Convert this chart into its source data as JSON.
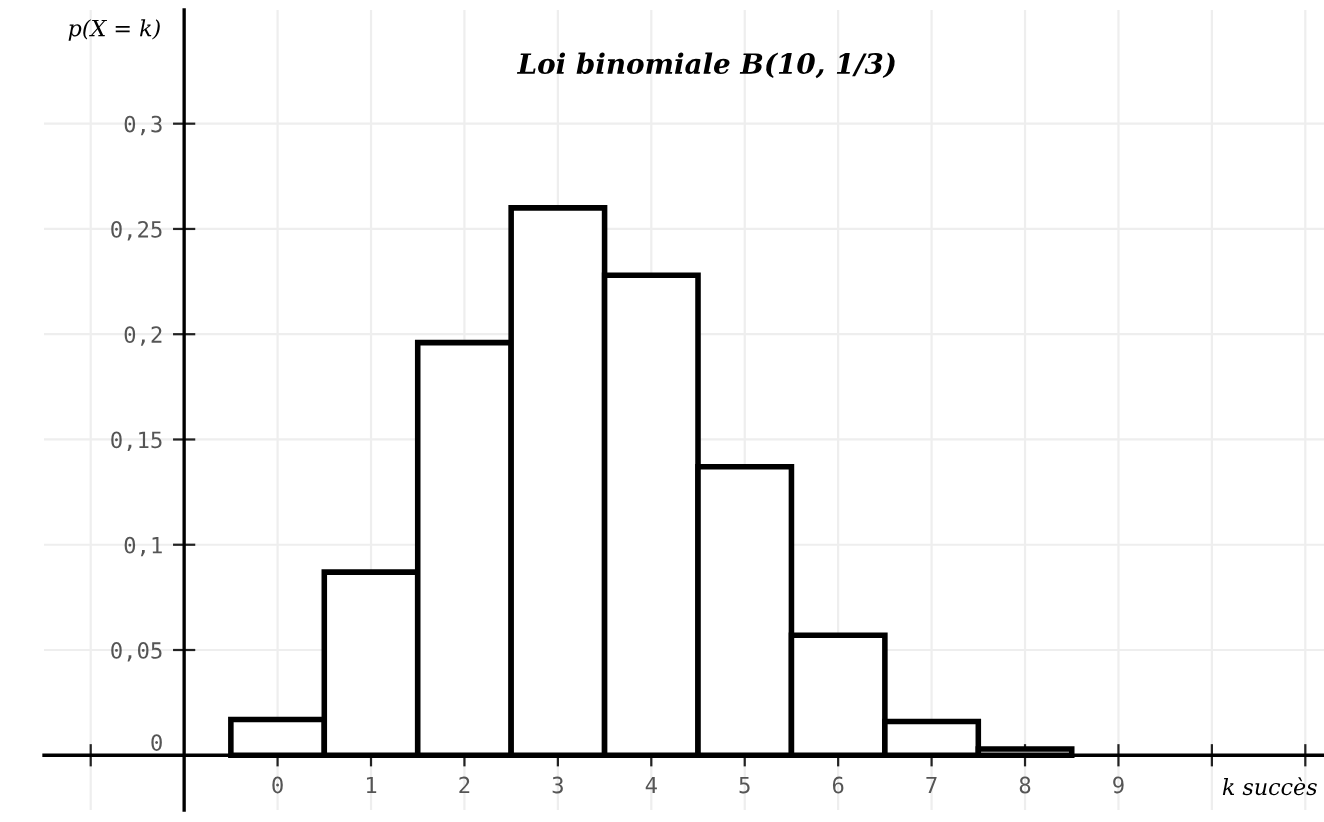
{
  "chart_data": {
    "type": "histogram",
    "title": "Loi binomiale B(10, 1/3)",
    "xlabel": "k succès",
    "ylabel": "p(X = k)",
    "bins": [
      -0.5,
      0.5,
      1.5,
      2.5,
      3.5,
      4.5,
      5.5,
      6.5,
      7.5,
      8.5
    ],
    "values": [
      0.017,
      0.087,
      0.196,
      0.26,
      0.228,
      0.137,
      0.057,
      0.016,
      0.003
    ],
    "color": "#ffffff",
    "xlim": [
      -2.5,
      11.2
    ],
    "ylim": [
      -0.026,
      0.354
    ],
    "xticks": [
      {
        "value": -2,
        "label": null
      },
      0,
      1,
      2,
      3,
      4,
      5,
      6,
      7,
      8,
      9,
      {
        "value": 10,
        "label": null
      },
      {
        "value": 11,
        "label": null
      }
    ],
    "yticks": [
      {
        "value": 0,
        "label": "0"
      },
      {
        "value": 0.05,
        "label": "0,05"
      },
      {
        "value": 0.1,
        "label": "0,1"
      },
      {
        "value": 0.15,
        "label": "0,15"
      },
      {
        "value": 0.2,
        "label": "0,2"
      },
      {
        "value": 0.25,
        "label": "0,25"
      },
      {
        "value": 0.3,
        "label": "0,3"
      }
    ],
    "grid": true
  }
}
